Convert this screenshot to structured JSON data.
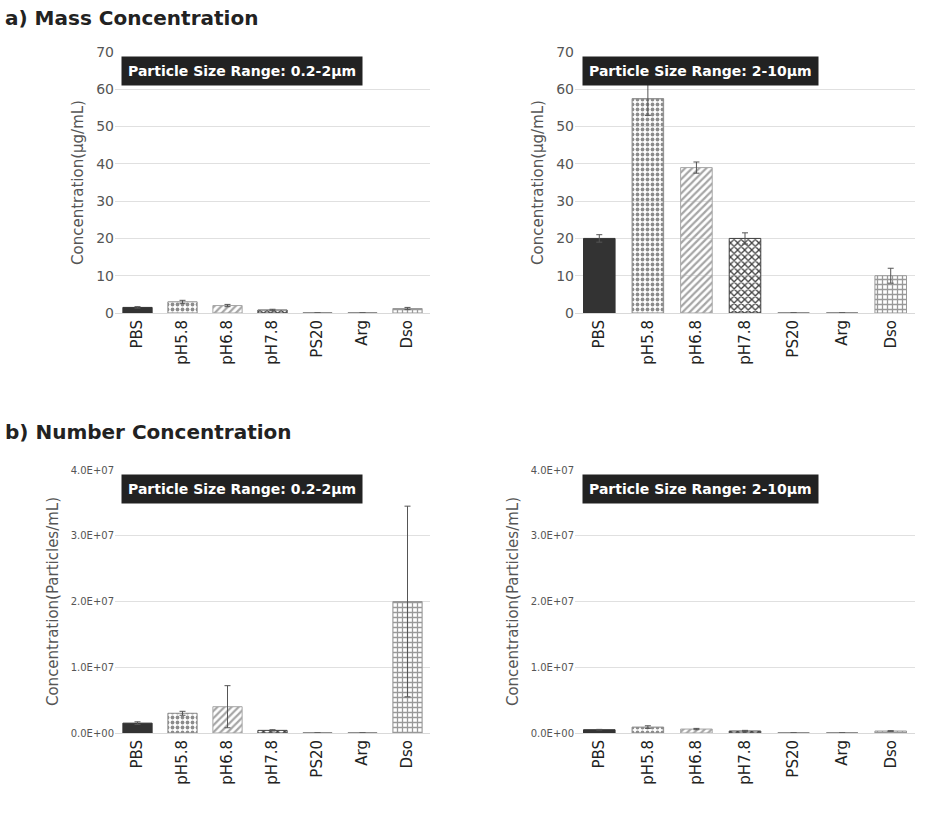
{
  "chart_data": [
    {
      "type": "bar",
      "title": "a) Mass Concentration",
      "annotations": [
        "Particle Size Range: 0.2-2µm"
      ],
      "y_label": "Concentration(µg/mL)",
      "categories": [
        "PBS",
        "pH5.8",
        "pH6.8",
        "pH7.8",
        "PS20",
        "Arg",
        "Dso"
      ],
      "values": [
        1.5,
        3,
        2,
        0.8,
        0,
        0,
        1.2
      ],
      "errors": [
        0.2,
        0.4,
        0.3,
        0.2,
        0,
        0,
        0.3
      ],
      "colors": [
        "#333333",
        "#8c8c8c",
        "#a6a6a6",
        "#404040",
        "#666666",
        "#666666",
        "#999999"
      ],
      "ylim": [
        0,
        70
      ],
      "yticks": [
        0,
        10,
        20,
        30,
        40,
        50,
        60,
        70
      ],
      "grid": true
    },
    {
      "type": "bar",
      "annotations": [
        "Particle Size Range: 2-10µm"
      ],
      "y_label": "Concentration(µg/mL)",
      "categories": [
        "PBS",
        "pH5.8",
        "pH6.8",
        "pH7.8",
        "PS20",
        "Arg",
        "Dso"
      ],
      "values": [
        20,
        57.5,
        39,
        20,
        0,
        0,
        10
      ],
      "errors": [
        1,
        4.5,
        1.5,
        1.5,
        0,
        0,
        2
      ],
      "colors": [
        "#333333",
        "#8c8c8c",
        "#a6a6a6",
        "#404040",
        "#666666",
        "#666666",
        "#999999"
      ],
      "ylim": [
        0,
        70
      ],
      "yticks": [
        0,
        10,
        20,
        30,
        40,
        50,
        60,
        70
      ],
      "grid": true
    },
    {
      "type": "bar",
      "title": "b) Number Concentration",
      "annotations": [
        "Particle Size Range: 0.2-2µm"
      ],
      "y_label": "Concentration(Particles/mL)",
      "categories": [
        "PBS",
        "pH5.8",
        "pH6.8",
        "pH7.8",
        "PS20",
        "Arg",
        "Dso"
      ],
      "values": [
        1500000,
        3000000,
        4000000,
        400000,
        0,
        0,
        20000000
      ],
      "errors": [
        200000,
        300000,
        3200000,
        100000,
        0,
        0,
        14500000
      ],
      "colors": [
        "#333333",
        "#8c8c8c",
        "#a6a6a6",
        "#404040",
        "#666666",
        "#666666",
        "#999999"
      ],
      "ylim": [
        0,
        40000000
      ],
      "yticks": [
        {
          "value": 0,
          "label": "0.0E+00"
        },
        {
          "value": 10000000,
          "label": "1.0E+07"
        },
        {
          "value": 20000000,
          "label": "2.0E+07"
        },
        {
          "value": 30000000,
          "label": "3.0E+07"
        },
        {
          "value": 40000000,
          "label": "4.0E+07"
        }
      ],
      "grid": true
    },
    {
      "type": "bar",
      "annotations": [
        "Particle Size Range: 2-10µm"
      ],
      "y_label": "Concentration(Particles/mL)",
      "categories": [
        "PBS",
        "pH5.8",
        "pH6.8",
        "pH7.8",
        "PS20",
        "Arg",
        "Dso"
      ],
      "values": [
        500000,
        900000,
        600000,
        300000,
        0,
        0,
        300000
      ],
      "errors": [
        50000,
        200000,
        100000,
        100000,
        0,
        0,
        50000
      ],
      "colors": [
        "#333333",
        "#8c8c8c",
        "#a6a6a6",
        "#404040",
        "#666666",
        "#666666",
        "#999999"
      ],
      "ylim": [
        0,
        40000000
      ],
      "yticks": [
        {
          "value": 0,
          "label": "0.0E+00"
        },
        {
          "value": 10000000,
          "label": "1.0E+07"
        },
        {
          "value": 20000000,
          "label": "2.0E+07"
        },
        {
          "value": 30000000,
          "label": "3.0E+07"
        },
        {
          "value": 40000000,
          "label": "4.0E+07"
        }
      ],
      "grid": true
    }
  ]
}
